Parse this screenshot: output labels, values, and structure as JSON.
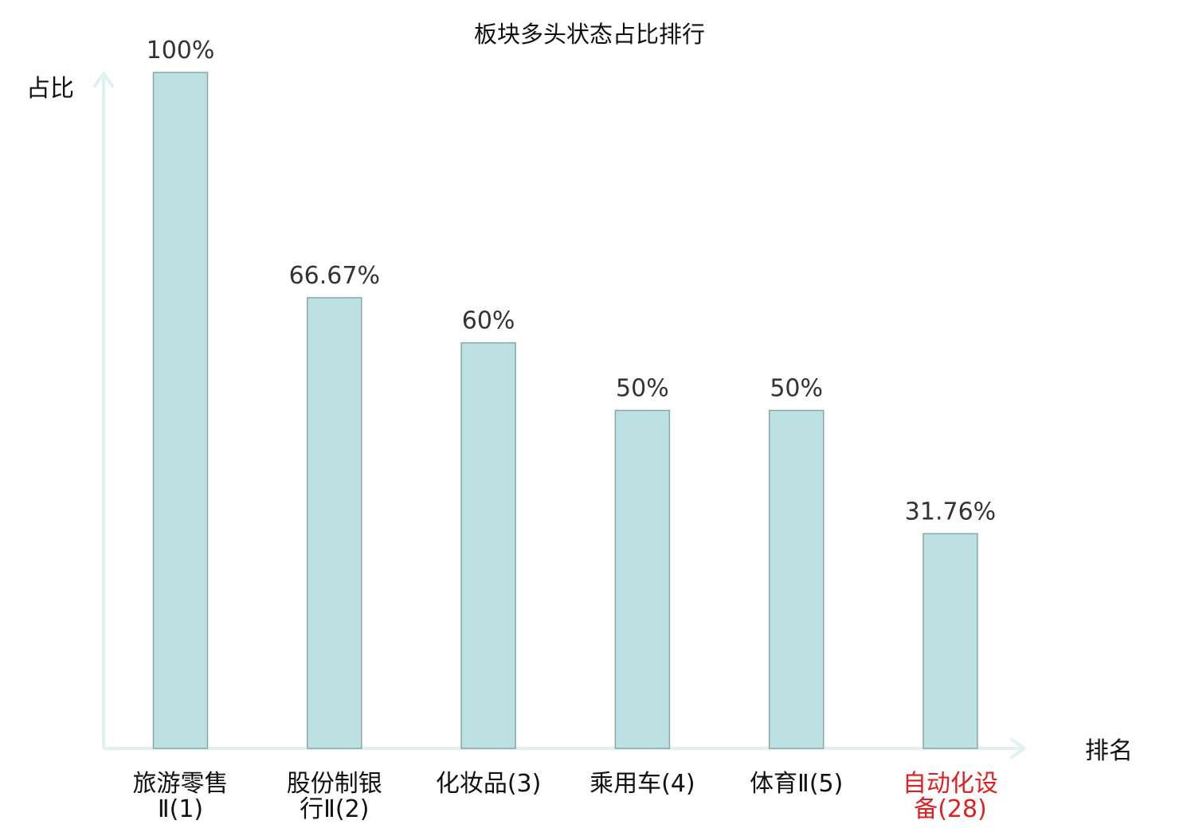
{
  "chart_data": {
    "type": "bar",
    "title": "板块多头状态占比排行",
    "ylabel": "占比",
    "xlabel": "排名",
    "ylim": [
      0,
      100
    ],
    "categories": [
      {
        "lines": [
          "旅游零售",
          "Ⅱ(1)"
        ],
        "highlight": false
      },
      {
        "lines": [
          "股份制银",
          "行Ⅱ(2)"
        ],
        "highlight": false
      },
      {
        "lines": [
          "化妆品(3)"
        ],
        "highlight": false
      },
      {
        "lines": [
          "乘用车(4)"
        ],
        "highlight": false
      },
      {
        "lines": [
          "体育Ⅱ(5)"
        ],
        "highlight": false
      },
      {
        "lines": [
          "自动化设",
          "备(28)"
        ],
        "highlight": true
      }
    ],
    "values": [
      100,
      66.67,
      60,
      50,
      50,
      31.76
    ],
    "value_labels": [
      "100%",
      "66.67%",
      "60%",
      "50%",
      "50%",
      "31.76%"
    ],
    "grid": false,
    "legend": "none"
  },
  "colors": {
    "bar_fill": "#bde0e3",
    "bar_stroke": "#86a7aa",
    "axis": "#e0f2ef",
    "text": "#111111",
    "highlight": "#e02020"
  }
}
